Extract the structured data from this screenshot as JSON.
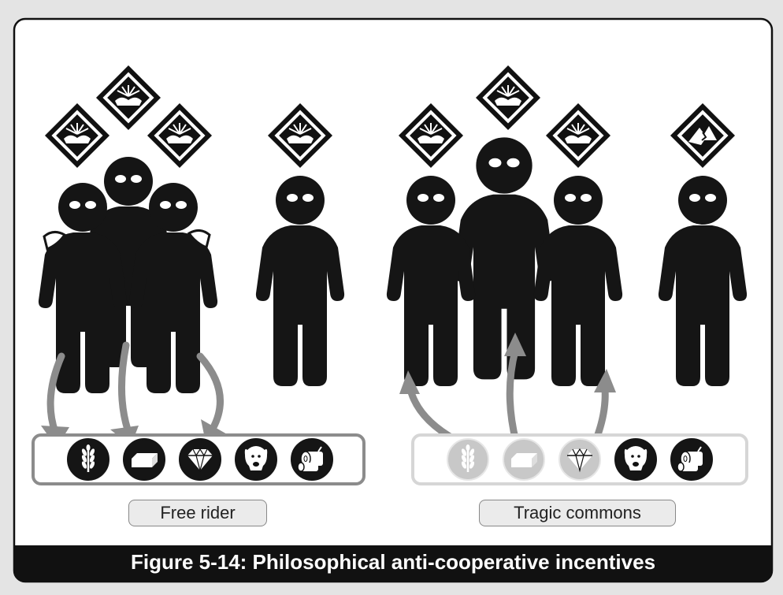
{
  "figure": {
    "caption": "Figure 5-14: Philosophical anti-cooperative incentives"
  },
  "panels": [
    {
      "label": "Free rider",
      "resource_icons": [
        "wheat-icon",
        "brick-icon",
        "diamond-icon",
        "sheep-icon",
        "log-icon"
      ],
      "taken_resources": 3
    },
    {
      "label": "Tragic commons",
      "resource_icons": [
        "wheat-icon",
        "brick-icon",
        "diamond-icon",
        "sheep-icon",
        "log-icon"
      ],
      "taken_resources": 3
    }
  ],
  "badges": {
    "happy": "sunrise-sign-icon",
    "unhappy": "broken-sign-icon"
  },
  "colors": {
    "figure": "#151515",
    "arrow": "#8c8c8c",
    "faded_icon": "#c8c8c8",
    "panel_bg": "#ffffff",
    "page_bg": "#e4e4e4"
  }
}
